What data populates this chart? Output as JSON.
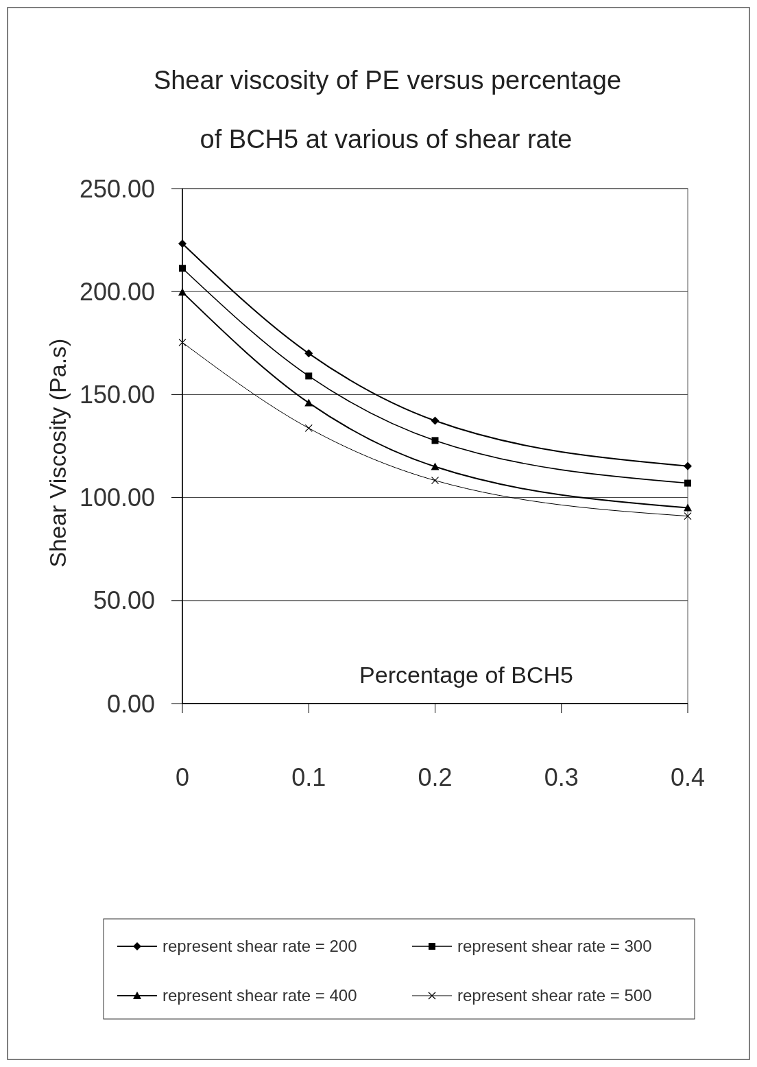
{
  "chart_data": {
    "type": "line",
    "title": "Shear viscosity of PE versus percentage",
    "subtitle": "of BCH5 at various of shear rate",
    "xlabel": "Percentage of BCH5",
    "ylabel": "Shear Viscosity (Pa.s)",
    "x": [
      0,
      0.1,
      0.2,
      0.4
    ],
    "series": [
      {
        "name": "represent shear rate = 200",
        "color": "#000000",
        "marker": "diamond",
        "values": [
          223.3,
          170,
          137.3,
          115.3
        ]
      },
      {
        "name": "represent shear rate = 300",
        "color": "#000000",
        "marker": "square",
        "values": [
          211.3,
          159,
          127.7,
          107
        ]
      },
      {
        "name": "represent shear rate = 400",
        "color": "#000000",
        "marker": "triangle",
        "values": [
          199.7,
          146,
          115,
          95
        ]
      },
      {
        "name": "represent shear rate = 500",
        "color": "#000000",
        "marker": "cross",
        "values": [
          175.3,
          133.7,
          108.3,
          91
        ]
      }
    ],
    "xlim": [
      0,
      0.4
    ],
    "xticks": [
      0,
      0.1,
      0.2,
      0.3,
      0.4
    ],
    "ylim": [
      0,
      250
    ],
    "yticks": [
      {
        "value": 0,
        "label": "0.00"
      },
      {
        "value": 50,
        "label": "50.00"
      },
      {
        "value": 100,
        "label": "100.00"
      },
      {
        "value": 150,
        "label": "150.00"
      },
      {
        "value": 200,
        "label": "200.00"
      },
      {
        "value": 250,
        "label": "250.00"
      }
    ],
    "grid": "y",
    "legend": "bottom",
    "line_style": "solid"
  }
}
